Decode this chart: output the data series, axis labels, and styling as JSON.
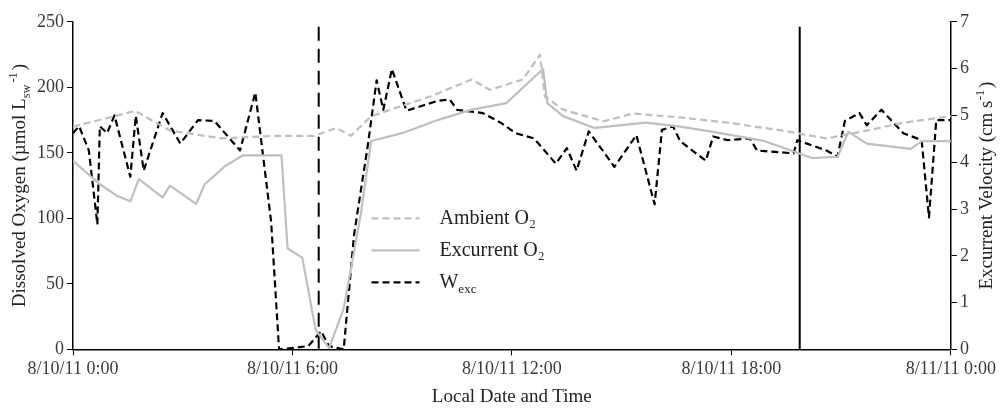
{
  "chart_data": {
    "type": "line",
    "xlabel": "Local Date and Time",
    "ylabel": "Dissolved Oxygen (µmol L$_{sw}$$^{-1}$)",
    "y2label": "Excurrent Velocity (cm s$^{-1}$)",
    "xlim": [
      "--08-10T00:00",
      "--08-11T00:00"
    ],
    "xticks": [
      {
        "value": "--08-10T00:00",
        "label": "8/10/11 0:00"
      },
      {
        "value": "--08-10T06:00",
        "label": "8/10/11 6:00"
      },
      {
        "value": "--08-10T12:00",
        "label": "8/10/11 12:00"
      },
      {
        "value": "--08-10T18:00",
        "label": "8/10/11 18:00"
      },
      {
        "value": "--08-11T00:00",
        "label": "8/11/11 0:00"
      }
    ],
    "ylim": [
      0,
      250
    ],
    "yticks": [
      0,
      50,
      100,
      150,
      200,
      250
    ],
    "y2lim": [
      0,
      7
    ],
    "y2ticks": [
      0,
      1,
      2,
      3,
      4,
      5,
      6,
      7
    ],
    "grid": false,
    "legend": "bottom",
    "marker": "none",
    "ref_lines": [
      {
        "axis": "x",
        "value": "--08-10T06:43",
        "color": "#000000",
        "line_style": "dashed"
      },
      {
        "axis": "x",
        "value": "--08-10T19:52",
        "color": "#000000",
        "line_style": "solid"
      }
    ],
    "series": [
      {
        "name": "Ambient O₂",
        "color": "#bfbfbf",
        "line_style": "dashed",
        "x": [
          "--08-10T00:00",
          "--08-10T01:42",
          "--08-10T02:39",
          "--08-10T04:04",
          "--08-10T05:30",
          "--08-10T06:36",
          "--08-10T07:12",
          "--08-10T07:36",
          "--08-10T08:09",
          "--08-10T09:46",
          "--08-10T10:54",
          "--08-10T11:24",
          "--08-10T12:18",
          "--08-10T12:46",
          "--08-10T12:54",
          "--08-10T13:24",
          "--08-10T14:30",
          "--08-10T15:18",
          "--08-10T16:36",
          "--08-10T17:54",
          "--08-10T19:24",
          "--08-10T20:36",
          "--08-10T21:42",
          "--08-10T22:42",
          "--08-11T00:00"
        ],
        "values": [
          170,
          182,
          167,
          161,
          163,
          163,
          169,
          163,
          178,
          193,
          206,
          198,
          206,
          225,
          193,
          183,
          174,
          180,
          177,
          173,
          167,
          161,
          167,
          173,
          178
        ]
      },
      {
        "name": "Excurrent O₂",
        "color": "#bfbfbf",
        "line_style": "solid",
        "x": [
          "--08-10T00:00",
          "--08-10T00:44",
          "--08-10T01:13",
          "--08-10T01:34",
          "--08-10T01:48",
          "--08-10T02:27",
          "--08-10T02:39",
          "--08-10T03:22",
          "--08-10T03:36",
          "--08-10T04:10",
          "--08-10T04:38",
          "--08-10T05:42",
          "--08-10T05:52",
          "--08-10T06:16",
          "--08-10T06:38",
          "--08-10T07:00",
          "--08-10T07:24",
          "--08-10T07:52",
          "--08-10T08:09",
          "--08-10T09:00",
          "--08-10T09:58",
          "--08-10T10:54",
          "--08-10T11:51",
          "--08-10T12:51",
          "--08-10T12:58",
          "--08-10T13:24",
          "--08-10T14:15",
          "--08-10T15:40",
          "--08-10T16:36",
          "--08-10T17:30",
          "--08-10T18:54",
          "--08-10T20:12",
          "--08-10T20:54",
          "--08-10T21:12",
          "--08-10T21:42",
          "--08-10T22:54",
          "--08-10T23:12",
          "--08-11T00:00"
        ],
        "values": [
          144,
          126,
          117,
          113,
          130,
          116,
          125,
          111,
          126,
          140,
          148,
          148,
          77,
          70,
          15,
          1,
          31,
          103,
          159,
          165,
          175,
          183,
          188,
          214,
          188,
          178,
          169,
          173,
          170,
          166,
          159,
          146,
          147,
          166,
          157,
          153,
          159,
          159
        ]
      },
      {
        "name": "W$_{exc}$",
        "color": "#000000",
        "line_style": "dashed",
        "axis": "y2",
        "x": [
          "--08-10T00:00",
          "--08-10T00:10",
          "--08-10T00:26",
          "--08-10T00:40",
          "--08-10T00:44",
          "--08-10T00:56",
          "--08-10T01:08",
          "--08-10T01:34",
          "--08-10T01:43",
          "--08-10T01:56",
          "--08-10T02:27",
          "--08-10T02:56",
          "--08-10T03:25",
          "--08-10T03:52",
          "--08-10T04:34",
          "--08-10T04:59",
          "--08-10T05:25",
          "--08-10T05:38",
          "--08-10T06:26",
          "--08-10T06:47",
          "--08-10T07:00",
          "--08-10T07:24",
          "--08-10T07:41",
          "--08-10T08:04",
          "--08-10T08:18",
          "--08-10T08:29",
          "--08-10T08:43",
          "--08-10T09:07",
          "--08-10T09:58",
          "--08-10T10:18",
          "--08-10T10:30",
          "--08-10T11:12",
          "--08-10T11:42",
          "--08-10T12:06",
          "--08-10T12:36",
          "--08-10T13:12",
          "--08-10T13:30",
          "--08-10T13:46",
          "--08-10T14:06",
          "--08-10T14:48",
          "--08-10T15:24",
          "--08-10T15:54",
          "--08-10T16:06",
          "--08-10T16:24",
          "--08-10T16:36",
          "--08-10T17:18",
          "--08-10T17:30",
          "--08-10T17:54",
          "--08-10T18:30",
          "--08-10T18:42",
          "--08-10T19:42",
          "--08-10T19:48",
          "--08-10T20:36",
          "--08-10T20:54",
          "--08-10T21:06",
          "--08-10T21:30",
          "--08-10T21:42",
          "--08-10T22:06",
          "--08-10T22:42",
          "--08-10T23:12",
          "--08-10T23:24",
          "--08-10T23:36",
          "--08-11T00:00"
        ],
        "values": [
          4.62,
          4.77,
          4.25,
          2.67,
          4.77,
          4.62,
          5.0,
          3.69,
          4.99,
          3.82,
          5.05,
          4.4,
          4.9,
          4.88,
          4.25,
          5.49,
          2.73,
          0,
          0.07,
          0.39,
          0.07,
          0,
          2.45,
          4.4,
          5.75,
          5.12,
          5.99,
          5.1,
          5.31,
          5.34,
          5.12,
          5.05,
          4.84,
          4.62,
          4.51,
          3.97,
          4.3,
          3.82,
          4.66,
          3.9,
          4.58,
          3.1,
          4.69,
          4.77,
          4.45,
          4.03,
          4.55,
          4.47,
          4.51,
          4.25,
          4.19,
          4.47,
          4.25,
          4.12,
          4.88,
          5.05,
          4.79,
          5.12,
          4.62,
          4.47,
          2.82,
          4.9,
          4.9
        ]
      }
    ]
  }
}
